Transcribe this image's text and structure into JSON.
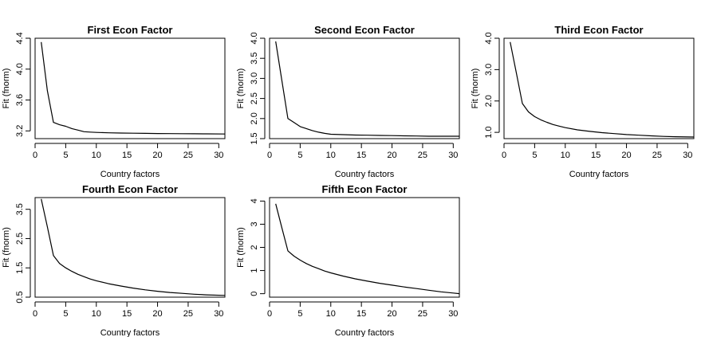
{
  "chart_data": [
    {
      "type": "line",
      "title": "First Econ Factor",
      "xlabel": "Country factors",
      "ylabel": "Fit (fnorm)",
      "xlim": [
        0,
        31
      ],
      "ylim": [
        3.1,
        4.4
      ],
      "xticks": [
        "0",
        "5",
        "10",
        "15",
        "20",
        "25",
        "30"
      ],
      "yticks": [
        "3.2",
        "3.6",
        "4.0",
        "4.4"
      ],
      "grid": false,
      "x": [
        1,
        2,
        3,
        4,
        5,
        6,
        7,
        8,
        9,
        10,
        12,
        14,
        16,
        18,
        20,
        22,
        24,
        26,
        28,
        31
      ],
      "y": [
        4.35,
        3.72,
        3.31,
        3.28,
        3.26,
        3.23,
        3.21,
        3.19,
        3.185,
        3.18,
        3.175,
        3.172,
        3.17,
        3.168,
        3.166,
        3.165,
        3.164,
        3.163,
        3.162,
        3.16
      ]
    },
    {
      "type": "line",
      "title": "Second Econ Factor",
      "xlabel": "Country factors",
      "ylabel": "Fit (fnorm)",
      "xlim": [
        0,
        31
      ],
      "ylim": [
        1.5,
        4.0
      ],
      "xticks": [
        "0",
        "5",
        "10",
        "15",
        "20",
        "25",
        "30"
      ],
      "yticks": [
        "1.5",
        "2.0",
        "2.5",
        "3.0",
        "3.5",
        "4.0"
      ],
      "grid": false,
      "x": [
        1,
        2,
        3,
        4,
        5,
        6,
        7,
        8,
        9,
        10,
        12,
        14,
        16,
        18,
        20,
        22,
        24,
        26,
        28,
        31
      ],
      "y": [
        3.92,
        2.95,
        2.0,
        1.9,
        1.8,
        1.75,
        1.7,
        1.66,
        1.63,
        1.61,
        1.6,
        1.59,
        1.585,
        1.58,
        1.575,
        1.57,
        1.565,
        1.56,
        1.56,
        1.56
      ]
    },
    {
      "type": "line",
      "title": "Third Econ Factor",
      "xlabel": "Country factors",
      "ylabel": "Fit (fnorm)",
      "xlim": [
        0,
        31
      ],
      "ylim": [
        0.8,
        4.0
      ],
      "xticks": [
        "0",
        "5",
        "10",
        "15",
        "20",
        "25",
        "30"
      ],
      "yticks": [
        "1.0",
        "2.0",
        "3.0",
        "4.0"
      ],
      "grid": false,
      "x": [
        1,
        2,
        3,
        4,
        5,
        6,
        7,
        8,
        9,
        10,
        12,
        14,
        16,
        18,
        20,
        22,
        24,
        26,
        28,
        31
      ],
      "y": [
        3.88,
        2.9,
        1.92,
        1.65,
        1.5,
        1.4,
        1.32,
        1.25,
        1.2,
        1.15,
        1.08,
        1.03,
        0.99,
        0.96,
        0.93,
        0.91,
        0.89,
        0.87,
        0.86,
        0.85
      ]
    },
    {
      "type": "line",
      "title": "Fourth Econ Factor",
      "xlabel": "Country factors",
      "ylabel": "Fit (fnorm)",
      "xlim": [
        0,
        31
      ],
      "ylim": [
        0.5,
        3.9
      ],
      "xticks": [
        "0",
        "5",
        "10",
        "15",
        "20",
        "25",
        "30"
      ],
      "yticks": [
        "0.5",
        "1.5",
        "2.5",
        "3.5"
      ],
      "grid": false,
      "x": [
        1,
        2,
        3,
        4,
        5,
        6,
        7,
        8,
        9,
        10,
        12,
        14,
        16,
        18,
        20,
        22,
        24,
        26,
        28,
        31
      ],
      "y": [
        3.85,
        2.9,
        1.92,
        1.65,
        1.5,
        1.38,
        1.28,
        1.2,
        1.12,
        1.06,
        0.96,
        0.88,
        0.81,
        0.75,
        0.7,
        0.66,
        0.63,
        0.6,
        0.58,
        0.56
      ]
    },
    {
      "type": "line",
      "title": "Fifth Econ Factor",
      "xlabel": "Country factors",
      "ylabel": "Fit (fnorm)",
      "xlim": [
        0,
        31
      ],
      "ylim": [
        -0.15,
        4.15
      ],
      "xticks": [
        "0",
        "5",
        "10",
        "15",
        "20",
        "25",
        "30"
      ],
      "yticks": [
        "0",
        "1",
        "2",
        "3",
        "4"
      ],
      "grid": false,
      "x": [
        1,
        2,
        3,
        4,
        5,
        6,
        7,
        8,
        9,
        10,
        12,
        14,
        16,
        18,
        20,
        22,
        24,
        26,
        28,
        30,
        31
      ],
      "y": [
        3.88,
        2.85,
        1.85,
        1.62,
        1.45,
        1.3,
        1.18,
        1.08,
        0.98,
        0.9,
        0.76,
        0.64,
        0.54,
        0.45,
        0.37,
        0.29,
        0.22,
        0.15,
        0.08,
        0.03,
        0.0
      ]
    }
  ]
}
